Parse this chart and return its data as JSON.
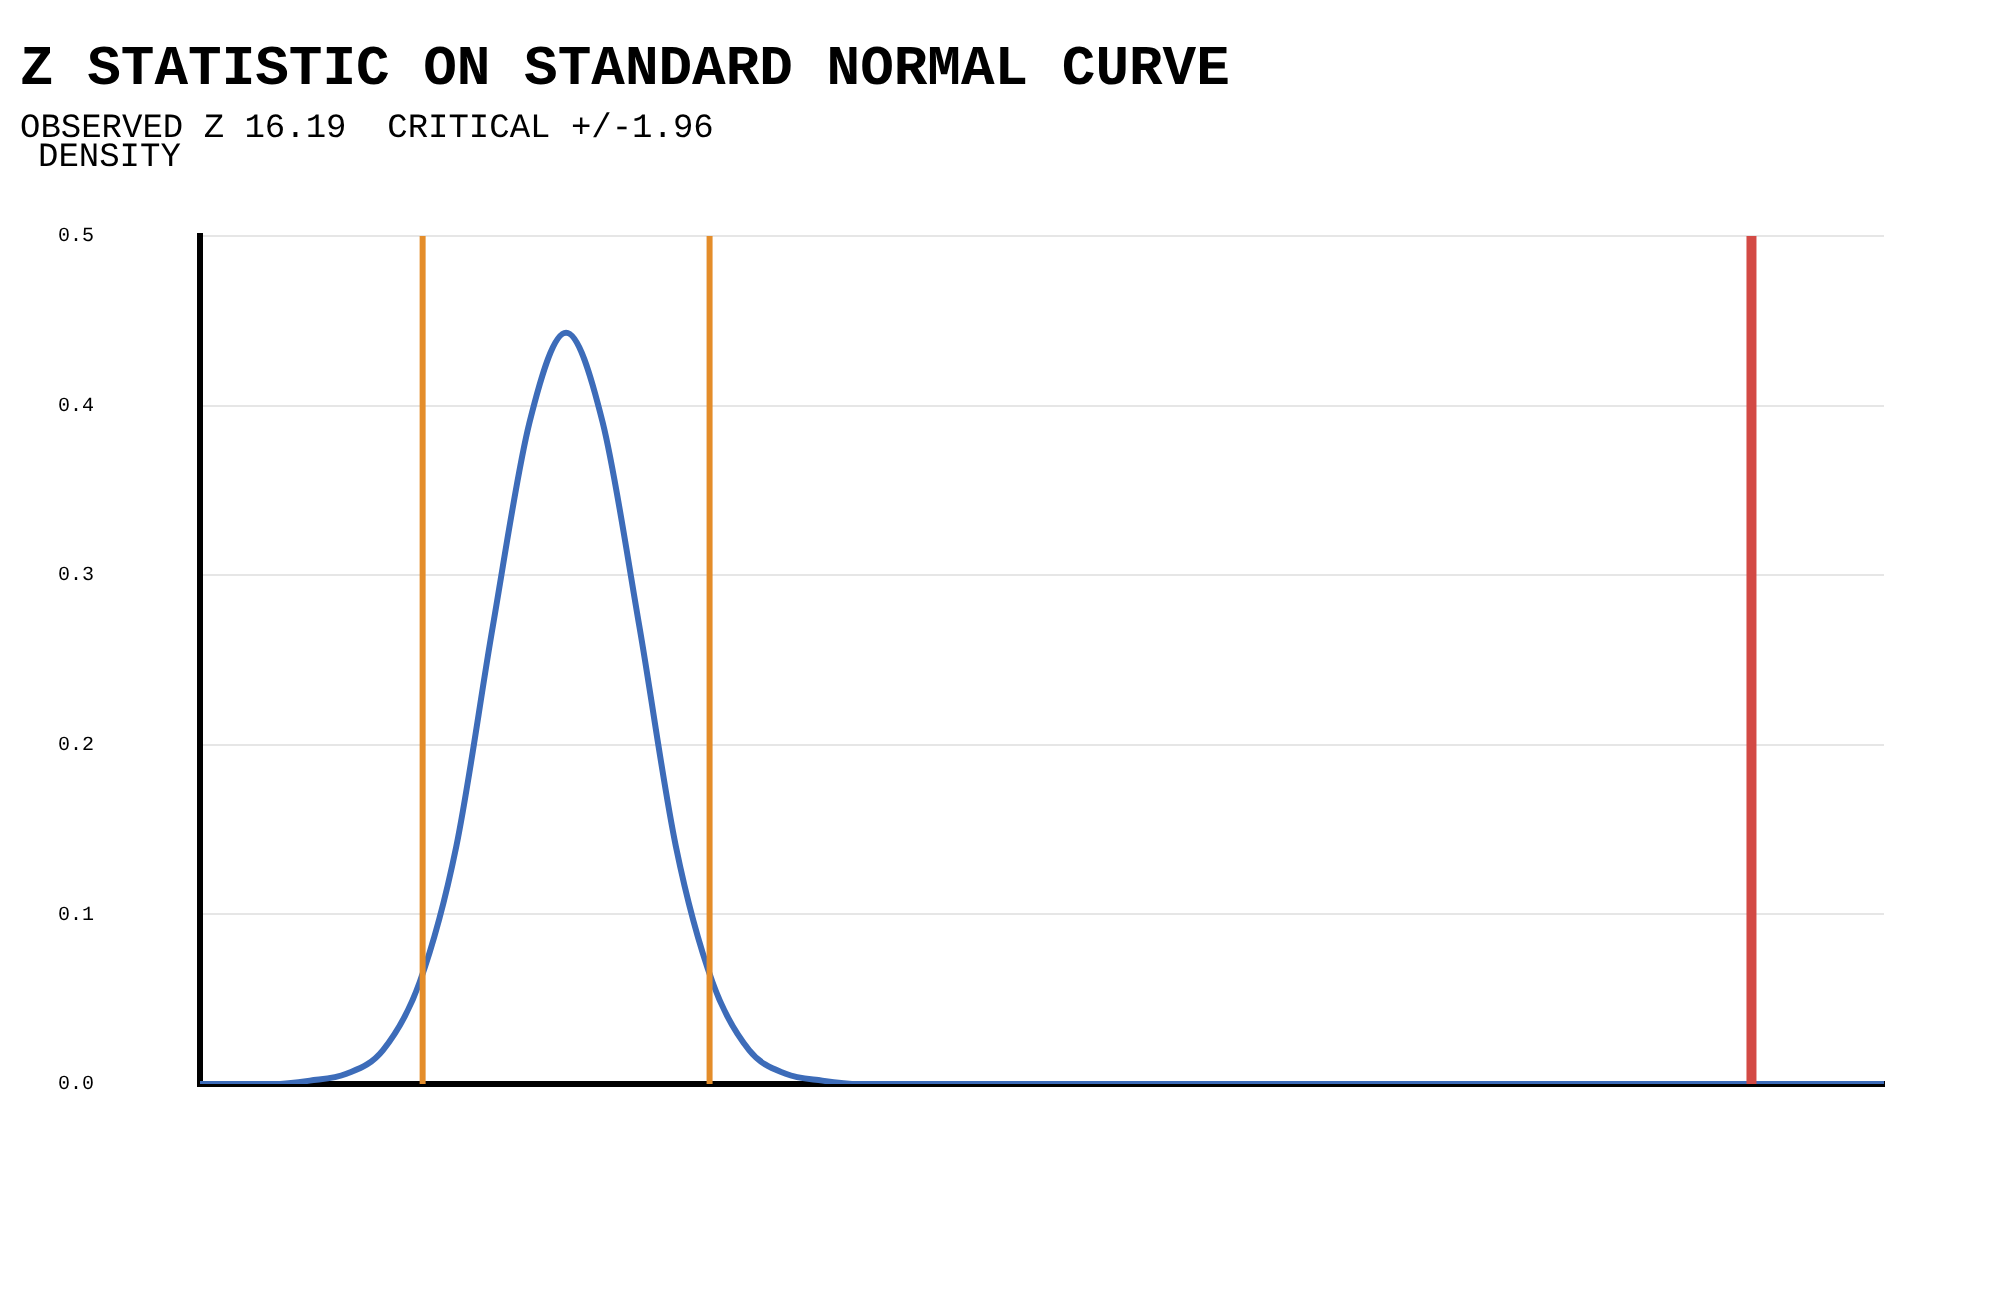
{
  "chart_data": {
    "type": "line",
    "title": "Z STATISTIC ON STANDARD NORMAL CURVE",
    "subtitle": "OBSERVED Z 16.19  CRITICAL +/-1.96",
    "ylabel": "DENSITY",
    "series": [
      {
        "color": "#3d6cb9",
        "values": [
          0,
          0,
          0,
          0.002,
          0.006,
          0.02,
          0.06,
          0.14,
          0.27,
          0.39,
          0.443,
          0.39,
          0.27,
          0.14,
          0.06,
          0.02,
          0.006,
          0.002,
          0,
          0,
          0,
          0,
          0,
          0,
          0,
          0,
          0,
          0,
          0,
          0,
          0,
          0,
          0,
          0,
          0,
          0,
          0,
          0,
          0,
          0,
          0,
          0,
          0,
          0,
          0,
          0,
          0
        ]
      }
    ],
    "categories": [
      null,
      null,
      null,
      null,
      null,
      null,
      null,
      null,
      null,
      null,
      null,
      null,
      null,
      null,
      null,
      null,
      null,
      null,
      null,
      null,
      null,
      null,
      null,
      null,
      null,
      null,
      null,
      null,
      null,
      null,
      null,
      null,
      null,
      null,
      null,
      null,
      null,
      null,
      null,
      null,
      null,
      null,
      null,
      null,
      null,
      null,
      null
    ],
    "ylim": [
      0,
      0.5
    ],
    "yticks": [
      {
        "value": 0,
        "label": "0.0"
      },
      {
        "value": 0.1,
        "label": "0.1"
      },
      {
        "value": 0.2,
        "label": "0.2"
      },
      {
        "value": 0.3,
        "label": "0.3"
      },
      {
        "value": 0.4,
        "label": "0.4"
      },
      {
        "value": 0.5,
        "label": "0.5"
      }
    ],
    "grid": "y",
    "tick_labels": "y",
    "marker": "none",
    "line_style": "solid",
    "legend": false
  }
}
